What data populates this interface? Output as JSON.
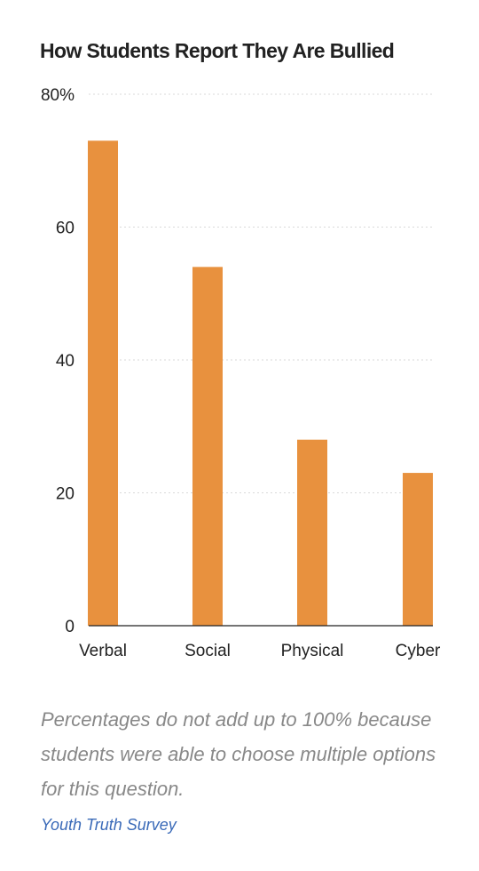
{
  "chart_data": {
    "type": "bar",
    "title": "How Students Report They Are Bullied",
    "xlabel": "",
    "ylabel": "",
    "categories": [
      "Verbal",
      "Social",
      "Physical",
      "Cyber"
    ],
    "values": [
      73,
      54,
      28,
      23
    ],
    "ylim": [
      0,
      80
    ],
    "yticks": [
      0,
      20,
      40,
      60,
      80
    ],
    "ytick_labels": [
      "0",
      "20",
      "40",
      "60",
      "80%"
    ],
    "grid": true,
    "bar_color": "#e8913e",
    "grid_color": "#d9d9d9",
    "axis_color": "#222222"
  },
  "note": "Percentages do not add up to 100% because students were able to choose multiple options for this question.",
  "source": "Youth Truth Survey",
  "colors": {
    "source_link": "#3a6ab8",
    "note_text": "#888888"
  }
}
